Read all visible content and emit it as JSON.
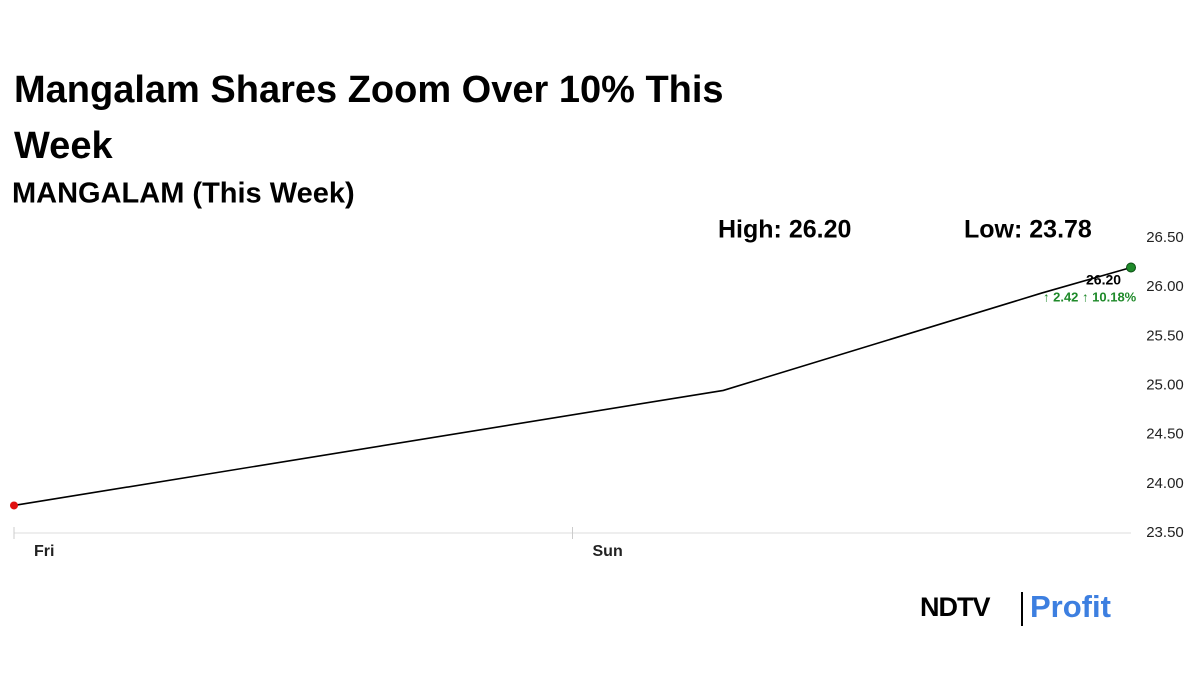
{
  "title": "Mangalam Shares Zoom Over 10% This Week",
  "chart_data": {
    "type": "line",
    "subtitle": "MANGALAM (This Week)",
    "x": [
      0,
      2.54,
      3.68,
      4
    ],
    "series": [
      {
        "color": "#000000",
        "values": [
          23.78,
          24.95,
          25.94,
          26.2
        ]
      }
    ],
    "start_marker_color": "#e01010",
    "end_marker_color": "#1f8a2a",
    "xlim": [
      0,
      4
    ],
    "xticks": [
      {
        "value": 0,
        "label": "Fri"
      },
      {
        "value": 2,
        "label": "Sun"
      }
    ],
    "ylim": [
      23.5,
      26.5
    ],
    "yticks": [
      {
        "value": 23.5,
        "label": "23.50"
      },
      {
        "value": 24,
        "label": "24.00"
      },
      {
        "value": 24.5,
        "label": "24.50"
      },
      {
        "value": 25,
        "label": "25.00"
      },
      {
        "value": 25.5,
        "label": "25.50"
      },
      {
        "value": 26,
        "label": "26.00"
      },
      {
        "value": 26.5,
        "label": "26.50"
      }
    ],
    "grid": false,
    "annotations": {
      "high": "High: 26.20",
      "low": "Low: 23.78",
      "last": "26.20",
      "change": "↑ 2.42 ↑ 10.18%"
    }
  },
  "logo": {
    "brand": "NDTV",
    "product": "Profit"
  }
}
